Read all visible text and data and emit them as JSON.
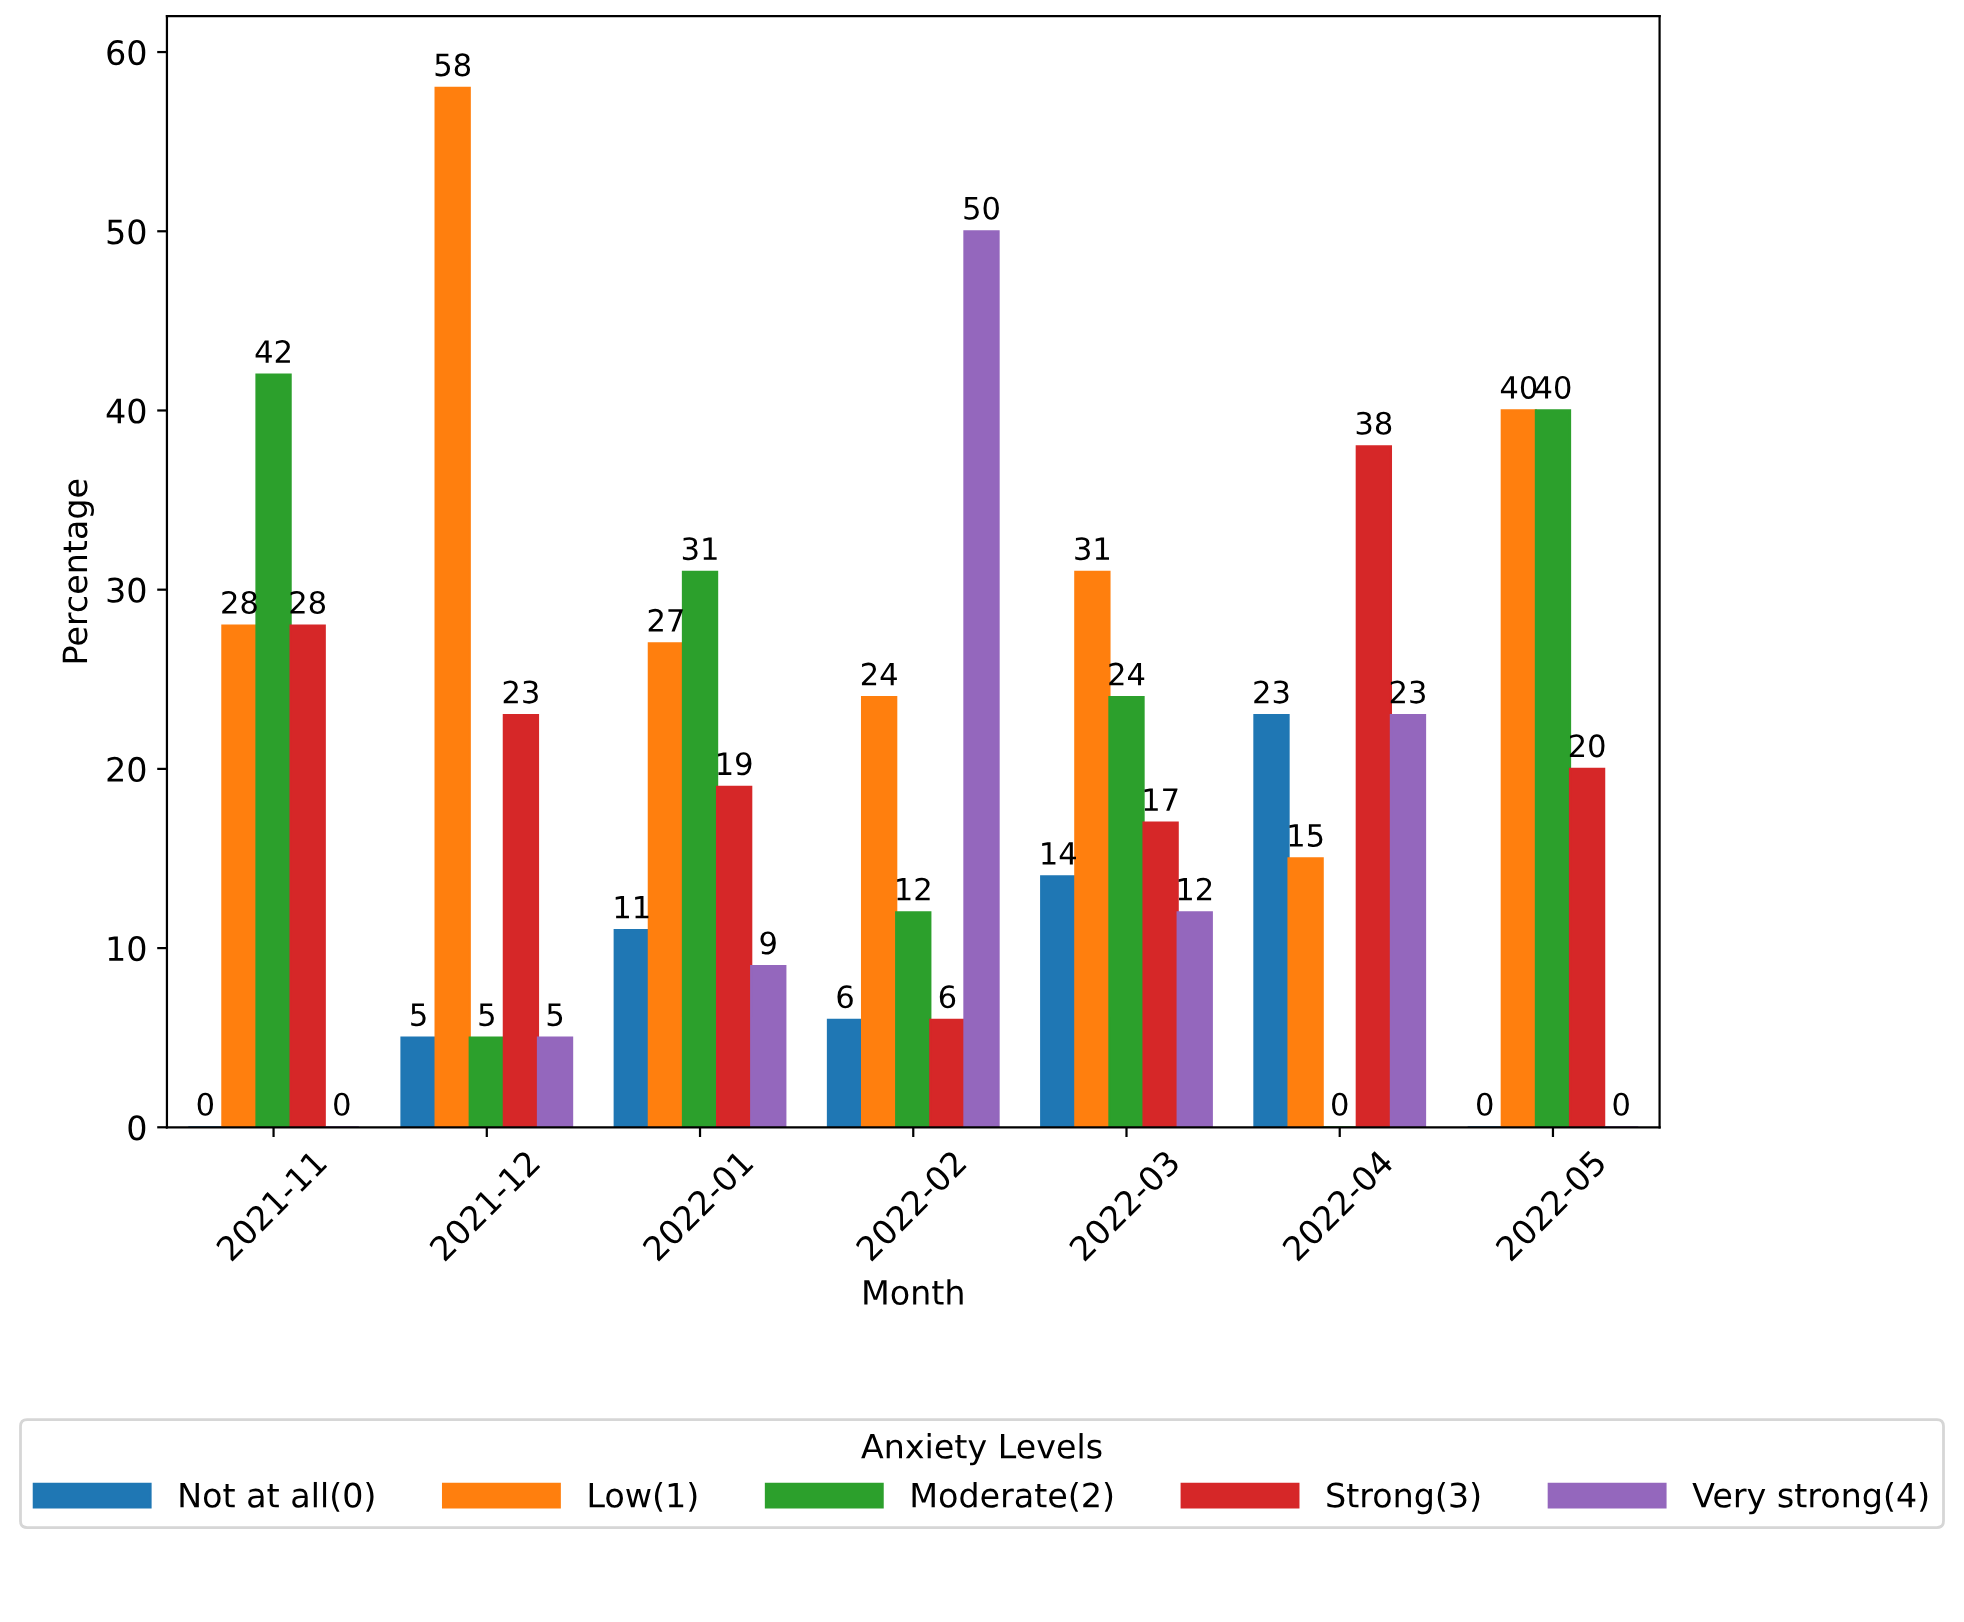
{
  "chart_data": {
    "type": "bar",
    "xlabel": "Month",
    "ylabel": "Percentage",
    "legend_title": "Anxiety Levels",
    "legend": "bottom",
    "data_labels": true,
    "categories": [
      "2021-11",
      "2021-12",
      "2022-01",
      "2022-02",
      "2022-03",
      "2022-04",
      "2022-05"
    ],
    "ylim": [
      0,
      62
    ],
    "yticks": [
      0,
      10,
      20,
      30,
      40,
      50,
      60
    ],
    "series": [
      {
        "name": "Not at all(0)",
        "color": "#1f77b4",
        "values": [
          0,
          5,
          11,
          6,
          14,
          23,
          0
        ]
      },
      {
        "name": "Low(1)",
        "color": "#ff7f0e",
        "values": [
          28,
          58,
          27,
          24,
          31,
          15,
          40
        ]
      },
      {
        "name": "Moderate(2)",
        "color": "#2ca02c",
        "values": [
          42,
          5,
          31,
          12,
          24,
          0,
          40
        ]
      },
      {
        "name": "Strong(3)",
        "color": "#d62728",
        "values": [
          28,
          23,
          19,
          6,
          17,
          38,
          20
        ]
      },
      {
        "name": "Very strong(4)",
        "color": "#9467bd",
        "values": [
          0,
          5,
          9,
          50,
          12,
          23,
          0
        ]
      }
    ]
  }
}
